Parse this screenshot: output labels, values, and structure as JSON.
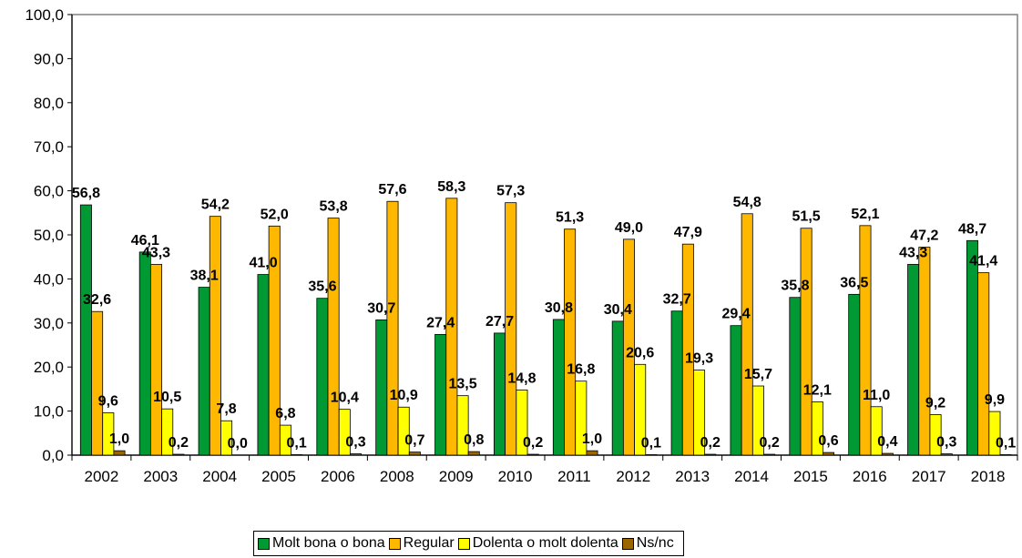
{
  "chart_data": {
    "type": "bar",
    "categories": [
      "2002",
      "2003",
      "2004",
      "2005",
      "2006",
      "2008",
      "2009",
      "2010",
      "2011",
      "2012",
      "2013",
      "2014",
      "2015",
      "2016",
      "2017",
      "2018"
    ],
    "series": [
      {
        "name": "Molt bona o bona",
        "color": "#009933",
        "values": [
          56.8,
          46.1,
          38.1,
          41.0,
          35.6,
          30.7,
          27.4,
          27.7,
          30.8,
          30.4,
          32.7,
          29.4,
          35.8,
          36.5,
          43.3,
          48.7
        ],
        "labels": [
          "56,8",
          "46,1",
          "38,1",
          "41,0",
          "35,6",
          "30,7",
          "27,4",
          "27,7",
          "30,8",
          "30,4",
          "32,7",
          "29,4",
          "35,8",
          "36,5",
          "43,3",
          "48,7"
        ]
      },
      {
        "name": "Regular",
        "color": "#FFB800",
        "values": [
          32.6,
          43.3,
          54.2,
          52.0,
          53.8,
          57.6,
          58.3,
          57.3,
          51.3,
          49.0,
          47.9,
          54.8,
          51.5,
          52.1,
          47.2,
          41.4
        ],
        "labels": [
          "32,6",
          "43,3",
          "54,2",
          "52,0",
          "53,8",
          "57,6",
          "58,3",
          "57,3",
          "51,3",
          "49,0",
          "47,9",
          "54,8",
          "51,5",
          "52,1",
          "47,2",
          "41,4"
        ]
      },
      {
        "name": "Dolenta o molt dolenta",
        "color": "#FFFF00",
        "values": [
          9.6,
          10.5,
          7.8,
          6.8,
          10.4,
          10.9,
          13.5,
          14.8,
          16.8,
          20.6,
          19.3,
          15.7,
          12.1,
          11.0,
          9.2,
          9.9
        ],
        "labels": [
          "9,6",
          "10,5",
          "7,8",
          "6,8",
          "10,4",
          "10,9",
          "13,5",
          "14,8",
          "16,8",
          "20,6",
          "19,3",
          "15,7",
          "12,1",
          "11,0",
          "9,2",
          "9,9"
        ]
      },
      {
        "name": "Ns/nc",
        "color": "#996600",
        "values": [
          1.0,
          0.2,
          0.0,
          0.1,
          0.3,
          0.7,
          0.8,
          0.2,
          1.0,
          0.1,
          0.2,
          0.2,
          0.6,
          0.4,
          0.3,
          0.1
        ],
        "labels": [
          "1,0",
          "0,2",
          "0,0",
          "0,1",
          "0,3",
          "0,7",
          "0,8",
          "0,2",
          "1,0",
          "0,1",
          "0,2",
          "0,2",
          "0,6",
          "0,4",
          "0,3",
          "0,1"
        ]
      }
    ],
    "yticks": [
      "0,0",
      "10,0",
      "20,0",
      "30,0",
      "40,0",
      "50,0",
      "60,0",
      "70,0",
      "80,0",
      "90,0",
      "100,0"
    ],
    "ylim": [
      0,
      100
    ],
    "title": "",
    "xlabel": "",
    "ylabel": "",
    "grid": false,
    "legend_position": "bottom"
  }
}
